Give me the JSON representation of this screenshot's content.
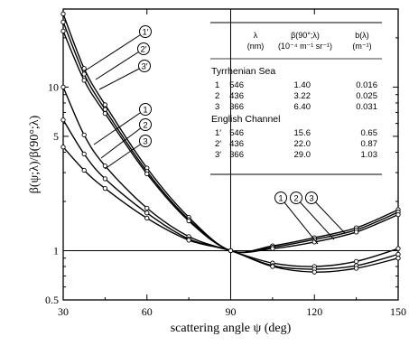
{
  "chart_data": {
    "type": "line",
    "xscale": "linear",
    "yscale": "log",
    "xlim": [
      30,
      150
    ],
    "ylim": [
      0.5,
      30
    ],
    "xlabel": "scattering angle ψ (deg)",
    "ylabel": "β(ψ;λ)/β(90°;λ)",
    "xticks": [
      "30",
      "60",
      "90",
      "120",
      "150"
    ],
    "yticks": [
      {
        "value": 0.5,
        "label": "0.5"
      },
      {
        "value": 1,
        "label": "1"
      },
      {
        "value": 5,
        "label": "5"
      },
      {
        "value": 10,
        "label": "10"
      }
    ],
    "reference_lines": [
      {
        "axis": "x",
        "value": 90
      },
      {
        "axis": "y",
        "value": 1
      }
    ],
    "series": [
      {
        "name": "1",
        "group": "Tyrrhenian Sea",
        "lambda_nm": 546,
        "x": [
          30,
          37.5,
          45,
          60,
          75,
          90,
          105,
          120,
          135,
          150
        ],
        "values": [
          10.0,
          5.1,
          3.3,
          1.82,
          1.22,
          1.0,
          0.84,
          0.8,
          0.86,
          1.03
        ]
      },
      {
        "name": "2",
        "group": "Tyrrhenian Sea",
        "lambda_nm": 436,
        "x": [
          30,
          37.5,
          45,
          60,
          75,
          90,
          105,
          120,
          135,
          150
        ],
        "values": [
          6.3,
          3.9,
          2.75,
          1.7,
          1.18,
          1.0,
          0.81,
          0.77,
          0.81,
          0.95
        ]
      },
      {
        "name": "3",
        "group": "Tyrrhenian Sea",
        "lambda_nm": 366,
        "x": [
          30,
          37.5,
          45,
          60,
          75,
          90,
          105,
          120,
          135,
          150
        ],
        "values": [
          4.3,
          3.1,
          2.4,
          1.58,
          1.16,
          1.0,
          0.8,
          0.74,
          0.78,
          0.9
        ]
      },
      {
        "name": "1′",
        "group": "English Channel",
        "lambda_nm": 546,
        "x": [
          30,
          37.5,
          45,
          60,
          75,
          90,
          105,
          120,
          135,
          150
        ],
        "values": [
          28.0,
          13.0,
          7.8,
          3.2,
          1.6,
          1.0,
          1.07,
          1.2,
          1.38,
          1.78
        ]
      },
      {
        "name": "2′",
        "group": "English Channel",
        "lambda_nm": 436,
        "x": [
          30,
          37.5,
          45,
          60,
          75,
          90,
          105,
          120,
          135,
          150
        ],
        "values": [
          25.0,
          12.0,
          7.3,
          3.05,
          1.55,
          1.0,
          1.05,
          1.17,
          1.34,
          1.72
        ]
      },
      {
        "name": "3′",
        "group": "English Channel",
        "lambda_nm": 366,
        "x": [
          30,
          37.5,
          45,
          60,
          75,
          90,
          105,
          120,
          135,
          150
        ],
        "values": [
          22.0,
          11.0,
          6.9,
          2.95,
          1.52,
          1.0,
          1.03,
          1.13,
          1.3,
          1.66
        ]
      }
    ],
    "callout_labels": {
      "upper_left": [
        "1′",
        "2′",
        "3′"
      ],
      "lower_left": [
        "1",
        "2",
        "3"
      ],
      "right": [
        "1",
        "2",
        "3"
      ]
    },
    "table": {
      "headers": [
        {
          "line1": "λ",
          "line2": "(nm)"
        },
        {
          "line1": "β(90°;λ)",
          "line2": "(10⁻⁴ m⁻¹ sr⁻¹)"
        },
        {
          "line1": "b(λ)",
          "line2": "(m⁻¹)"
        }
      ],
      "groups": [
        {
          "name": "Tyrrhenian Sea",
          "rows": [
            [
              "1",
              "546",
              "1.40",
              "0.016"
            ],
            [
              "2",
              "436",
              "3.22",
              "0.025"
            ],
            [
              "3",
              "366",
              "6.40",
              "0.031"
            ]
          ]
        },
        {
          "name": "English Channel",
          "rows": [
            [
              "1′",
              "546",
              "15.6",
              "0.65"
            ],
            [
              "2′",
              "436",
              "22.0",
              "0.87"
            ],
            [
              "3′",
              "366",
              "29.0",
              "1.03"
            ]
          ]
        }
      ]
    }
  }
}
